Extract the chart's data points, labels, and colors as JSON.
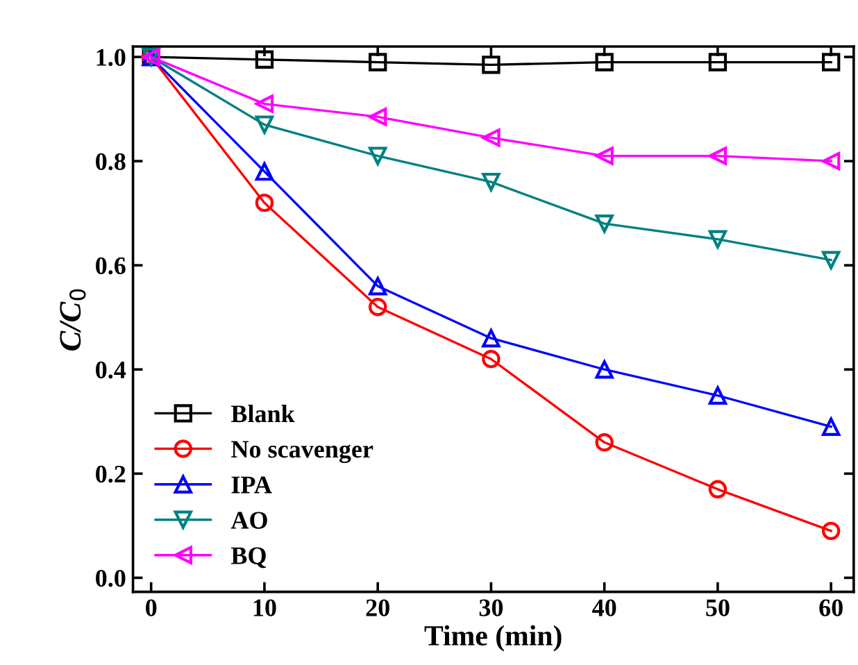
{
  "chart_data": {
    "type": "line",
    "xlabel": "Time (min)",
    "ylabel": "C/C$_{0}$",
    "x": [
      0,
      10,
      20,
      30,
      40,
      50,
      60
    ],
    "series": [
      {
        "name": "Blank",
        "color": "#000000",
        "marker": "square",
        "values": [
          1.0,
          0.995,
          0.99,
          0.985,
          0.99,
          0.99,
          0.99
        ]
      },
      {
        "name": "No scavenger",
        "color": "#ff0000",
        "marker": "circle",
        "values": [
          1.0,
          0.72,
          0.52,
          0.42,
          0.26,
          0.17,
          0.09
        ]
      },
      {
        "name": "IPA",
        "color": "#0000ff",
        "marker": "triangle",
        "values": [
          1.0,
          0.78,
          0.56,
          0.46,
          0.4,
          0.35,
          0.29
        ]
      },
      {
        "name": "AO",
        "color": "#008080",
        "marker": "triangle-down",
        "values": [
          1.0,
          0.87,
          0.81,
          0.76,
          0.68,
          0.65,
          0.61
        ]
      },
      {
        "name": "BQ",
        "color": "#ff00ff",
        "marker": "triangle-left",
        "values": [
          1.0,
          0.91,
          0.885,
          0.845,
          0.81,
          0.81,
          0.8
        ]
      }
    ],
    "xlim": [
      -1.6,
      62
    ],
    "xticks": [
      0,
      10,
      20,
      30,
      40,
      50,
      60
    ],
    "ylim": [
      -0.027,
      1.02
    ],
    "yticks": [
      {
        "value": 0,
        "label": "0.0"
      },
      {
        "value": 0.2,
        "label": "0.2"
      },
      {
        "value": 0.4,
        "label": "0.4"
      },
      {
        "value": 0.6,
        "label": "0.6"
      },
      {
        "value": 0.8,
        "label": "0.8"
      },
      {
        "value": 1.0,
        "label": "1.0"
      }
    ],
    "grid": false,
    "legend": "bottom left",
    "line_style": "solid"
  }
}
